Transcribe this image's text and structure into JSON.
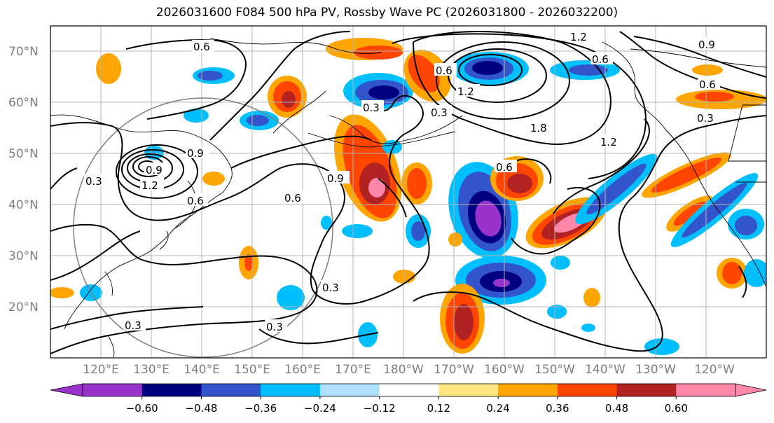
{
  "title": "2026031600 F084 500 hPa PV, Rossby Wave PC (2026031800 - 2026032200)",
  "lat_labels": [
    "70°N",
    "60°N",
    "50°N",
    "40°N",
    "30°N",
    "20°N"
  ],
  "lon_labels": [
    "120°E",
    "130°E",
    "140°E",
    "150°E",
    "160°E",
    "170°E",
    "180°W",
    "170°W",
    "160°W",
    "150°W",
    "140°W",
    "130°W",
    "120°W"
  ],
  "colorbar": {
    "ticks": [
      "−0.60",
      "−0.48",
      "−0.36",
      "−0.24",
      "−0.12",
      "0.12",
      "0.24",
      "0.36",
      "0.48",
      "0.60"
    ],
    "colors": [
      "#9933cc",
      "#000080",
      "#3355cc",
      "#00bfff",
      "#b0e0ff",
      "#ffffff",
      "#ffe680",
      "#ffa500",
      "#ff4500",
      "#b22222",
      "#ff88aa"
    ]
  },
  "contour_labels": [
    "0.6",
    "1.2",
    "0.9",
    "0.6",
    "0.3",
    "0.9",
    "0.3",
    "0.3",
    "0.6",
    "0.9",
    "0.6",
    "0.3",
    "0.3",
    "0.3",
    "0.6",
    "1.2",
    "0.6",
    "1.8",
    "1.2",
    "0.9",
    "0.6",
    "1.2",
    "0.3"
  ]
}
